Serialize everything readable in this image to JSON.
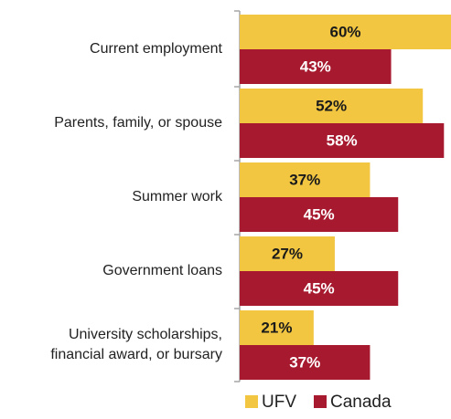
{
  "chart_data": {
    "type": "hbar",
    "categories": [
      "Current employment",
      "Parents, family, or spouse",
      "Summer work",
      "Government loans",
      "University scholarships,\nfinancial award, or bursary"
    ],
    "series": [
      {
        "name": "UFV",
        "color": "#f2c641",
        "values": [
          60,
          52,
          37,
          27,
          21
        ],
        "value_labels": [
          "60%",
          "52%",
          "37%",
          "27%",
          "21%"
        ]
      },
      {
        "name": "Canada",
        "color": "#a6192e",
        "values": [
          43,
          58,
          45,
          45,
          37
        ],
        "value_labels": [
          "43%",
          "58%",
          "45%",
          "45%",
          "37%"
        ]
      }
    ],
    "xlim": [
      0,
      60
    ],
    "legend": "bottom"
  }
}
